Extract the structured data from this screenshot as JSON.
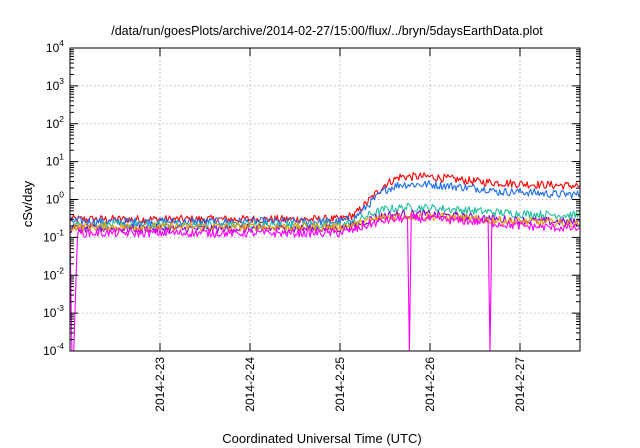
{
  "chart_data": {
    "type": "line",
    "title": "/data/run/goesPlots/archive/2014-02-27/15:00/flux/../bryn/5daysEarthData.plot",
    "xlabel": "Coordinated Universal Time (UTC)",
    "ylabel": "cSv/day",
    "x_range": [
      "2014-02-22T00:00",
      "2014-02-27T16:00"
    ],
    "x_ticks": [
      {
        "date": "2014-02-23T00:00",
        "label": "2014-2-23"
      },
      {
        "date": "2014-02-24T00:00",
        "label": "2014-2-24"
      },
      {
        "date": "2014-02-25T00:00",
        "label": "2014-2-25"
      },
      {
        "date": "2014-02-26T00:00",
        "label": "2014-2-26"
      },
      {
        "date": "2014-02-27T00:00",
        "label": "2014-2-27"
      }
    ],
    "y_scale": "log",
    "ylim": [
      0.0001,
      10000
    ],
    "y_ticks": [
      {
        "value": 0.0001,
        "base": "10",
        "exp": "-4"
      },
      {
        "value": 0.001,
        "base": "10",
        "exp": "-3"
      },
      {
        "value": 0.01,
        "base": "10",
        "exp": "-2"
      },
      {
        "value": 0.1,
        "base": "10",
        "exp": "-1"
      },
      {
        "value": 1,
        "base": "10",
        "exp": "0"
      },
      {
        "value": 10,
        "base": "10",
        "exp": "1"
      },
      {
        "value": 100,
        "base": "10",
        "exp": "2"
      },
      {
        "value": 1000,
        "base": "10",
        "exp": "3"
      },
      {
        "value": 10000,
        "base": "10",
        "exp": "4"
      }
    ],
    "grid": true,
    "legend": "none",
    "series": [
      {
        "color": "#ff0000",
        "x": [
          "2014-02-22T00:00",
          "2014-02-22T12:00",
          "2014-02-23T00:00",
          "2014-02-23T12:00",
          "2014-02-24T00:00",
          "2014-02-24T12:00",
          "2014-02-25T00:00",
          "2014-02-25T04:00",
          "2014-02-25T08:00",
          "2014-02-25T12:00",
          "2014-02-25T16:00",
          "2014-02-26T00:00",
          "2014-02-26T12:00",
          "2014-02-27T00:00",
          "2014-02-27T08:00",
          "2014-02-27T16:00"
        ],
        "y": [
          0.3,
          0.3,
          0.3,
          0.3,
          0.3,
          0.3,
          0.3,
          0.4,
          1.0,
          2.5,
          4.0,
          4.0,
          3.0,
          2.6,
          2.4,
          2.3
        ]
      },
      {
        "color": "#1f6fe8",
        "x": [
          "2014-02-22T00:00",
          "2014-02-22T12:00",
          "2014-02-23T00:00",
          "2014-02-23T12:00",
          "2014-02-24T00:00",
          "2014-02-24T12:00",
          "2014-02-25T00:00",
          "2014-02-25T04:00",
          "2014-02-25T08:00",
          "2014-02-25T12:00",
          "2014-02-25T16:00",
          "2014-02-26T00:00",
          "2014-02-26T12:00",
          "2014-02-26T16:00",
          "2014-02-26T17:00",
          "2014-02-27T00:00",
          "2014-02-27T08:00",
          "2014-02-27T16:00"
        ],
        "y": [
          0.27,
          0.26,
          0.26,
          0.26,
          0.26,
          0.26,
          0.26,
          0.33,
          0.8,
          1.8,
          2.5,
          2.5,
          2.0,
          1.9,
          1.6,
          1.6,
          1.4,
          1.35
        ]
      },
      {
        "color": "#20c0a0",
        "x": [
          "2014-02-22T00:00",
          "2014-02-23T00:00",
          "2014-02-24T00:00",
          "2014-02-25T00:00",
          "2014-02-25T04:00",
          "2014-02-25T08:00",
          "2014-02-25T12:00",
          "2014-02-25T18:00",
          "2014-02-26T00:00",
          "2014-02-26T12:00",
          "2014-02-27T00:00",
          "2014-02-27T16:00"
        ],
        "y": [
          0.21,
          0.21,
          0.21,
          0.21,
          0.25,
          0.4,
          0.55,
          0.62,
          0.6,
          0.5,
          0.42,
          0.38
        ]
      },
      {
        "color": "#9400d3",
        "x": [
          "2014-02-22T00:00",
          "2014-02-23T00:00",
          "2014-02-24T00:00",
          "2014-02-25T00:00",
          "2014-02-25T04:00",
          "2014-02-25T08:00",
          "2014-02-25T12:00",
          "2014-02-25T18:00",
          "2014-02-26T00:00",
          "2014-02-26T12:00",
          "2014-02-27T00:00",
          "2014-02-27T16:00"
        ],
        "y": [
          0.17,
          0.17,
          0.17,
          0.17,
          0.2,
          0.3,
          0.38,
          0.42,
          0.4,
          0.33,
          0.28,
          0.25
        ]
      },
      {
        "color": "#e69f00",
        "x": [
          "2014-02-22T00:00",
          "2014-02-23T00:00",
          "2014-02-24T00:00",
          "2014-02-25T00:00",
          "2014-02-25T04:00",
          "2014-02-25T08:00",
          "2014-02-25T12:00",
          "2014-02-25T18:00",
          "2014-02-26T00:00",
          "2014-02-26T12:00",
          "2014-02-27T00:00",
          "2014-02-27T16:00"
        ],
        "y": [
          0.19,
          0.19,
          0.19,
          0.19,
          0.22,
          0.28,
          0.34,
          0.37,
          0.36,
          0.3,
          0.26,
          0.23
        ]
      },
      {
        "color": "#ff00ff",
        "x": [
          "2014-02-22T00:00",
          "2014-02-22T00:30",
          "2014-02-22T01:00",
          "2014-02-22T02:00",
          "2014-02-23T00:00",
          "2014-02-24T00:00",
          "2014-02-25T00:00",
          "2014-02-25T04:00",
          "2014-02-25T08:00",
          "2014-02-25T12:00",
          "2014-02-25T18:00",
          "2014-02-25T18:30",
          "2014-02-25T19:00",
          "2014-02-26T00:00",
          "2014-02-26T12:00",
          "2014-02-26T15:30",
          "2014-02-26T16:00",
          "2014-02-26T16:30",
          "2014-02-27T00:00",
          "2014-02-27T16:00"
        ],
        "y": [
          0.13,
          0.0001,
          0.0001,
          0.13,
          0.13,
          0.13,
          0.13,
          0.16,
          0.22,
          0.28,
          0.32,
          0.0001,
          0.32,
          0.31,
          0.26,
          0.25,
          0.0001,
          0.24,
          0.2,
          0.17
        ]
      }
    ]
  }
}
